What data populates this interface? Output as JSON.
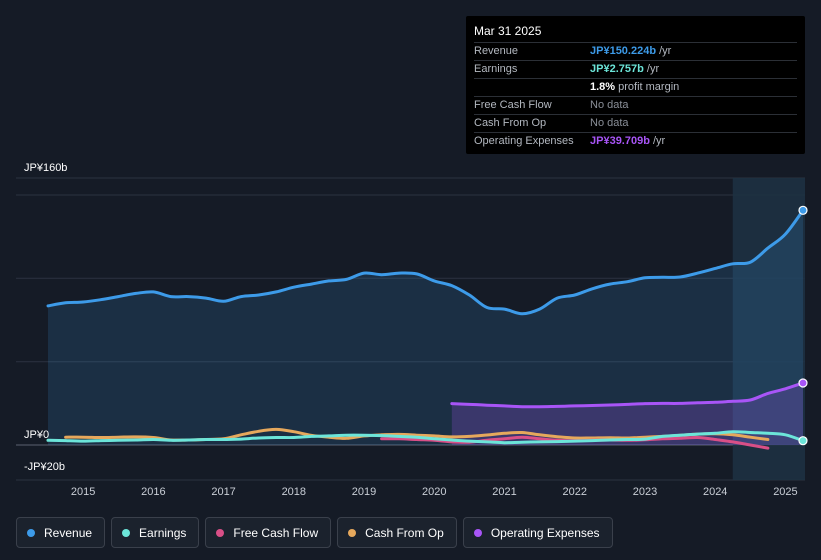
{
  "tooltip": {
    "date": "Mar 31 2025",
    "rows": [
      {
        "label": "Revenue",
        "value": "JP¥150.224b",
        "unit": " /yr",
        "color": "#3d9be9"
      },
      {
        "label": "Earnings",
        "value": "JP¥2.757b",
        "unit": " /yr",
        "color": "#6ce5d9"
      },
      {
        "label": "",
        "value": "1.8%",
        "unit": " profit margin",
        "color": "#ffffff"
      },
      {
        "label": "Free Cash Flow",
        "value": "No data",
        "unit": "",
        "color": ""
      },
      {
        "label": "Cash From Op",
        "value": "No data",
        "unit": "",
        "color": ""
      },
      {
        "label": "Operating Expenses",
        "value": "JP¥39.709b",
        "unit": " /yr",
        "color": "#a855f7"
      }
    ]
  },
  "legend": [
    {
      "label": "Revenue",
      "color": "#3d9be9"
    },
    {
      "label": "Earnings",
      "color": "#6ce5d9"
    },
    {
      "label": "Free Cash Flow",
      "color": "#d94f87"
    },
    {
      "label": "Cash From Op",
      "color": "#e6a85c"
    },
    {
      "label": "Operating Expenses",
      "color": "#a855f7"
    }
  ],
  "chart_data": {
    "type": "line",
    "title": "",
    "units": "JP¥ billions",
    "y_labels": [
      "JP¥160b",
      "JP¥0",
      "-JP¥20b"
    ],
    "ylim": [
      -20,
      160
    ],
    "xlim": [
      2014.5,
      2025.25
    ],
    "x_ticks": [
      2015,
      2016,
      2017,
      2018,
      2019,
      2020,
      2021,
      2022,
      2023,
      2024,
      2025
    ],
    "x_tick_labels": [
      "2015",
      "2016",
      "2017",
      "2018",
      "2019",
      "2020",
      "2021",
      "2022",
      "2023",
      "2024",
      "2025"
    ],
    "forecast_start": 2024.25,
    "series": [
      {
        "name": "Revenue",
        "color": "#3d9be9",
        "area": true,
        "end_marker": true,
        "x": [
          2014.5,
          2014.75,
          2015.0,
          2015.25,
          2015.5,
          2015.75,
          2016.0,
          2016.25,
          2016.5,
          2016.75,
          2017.0,
          2017.25,
          2017.5,
          2017.75,
          2018.0,
          2018.25,
          2018.5,
          2018.75,
          2019.0,
          2019.25,
          2019.5,
          2019.75,
          2020.0,
          2020.25,
          2020.5,
          2020.75,
          2021.0,
          2021.25,
          2021.5,
          2021.75,
          2022.0,
          2022.25,
          2022.5,
          2022.75,
          2023.0,
          2023.25,
          2023.5,
          2023.75,
          2024.0,
          2024.25,
          2024.5,
          2024.75,
          2025.0,
          2025.25
        ],
        "values": [
          89,
          91,
          91.5,
          93,
          95,
          97,
          98,
          95,
          95,
          94,
          92,
          95,
          96,
          98,
          101,
          103,
          105,
          106,
          110,
          109,
          110,
          109.5,
          105,
          102,
          96,
          88,
          87,
          84,
          87,
          94,
          96,
          100,
          103,
          104.5,
          107,
          107.3,
          107.5,
          110,
          113,
          116,
          117,
          126,
          135,
          150.2
        ]
      },
      {
        "name": "Operating Expenses",
        "color": "#a855f7",
        "area": true,
        "end_marker": true,
        "x": [
          2020.25,
          2020.5,
          2020.75,
          2021.0,
          2021.25,
          2021.5,
          2021.75,
          2022.0,
          2022.25,
          2022.5,
          2022.75,
          2023.0,
          2023.25,
          2023.5,
          2023.75,
          2024.0,
          2024.25,
          2024.5,
          2024.75,
          2025.0,
          2025.25
        ],
        "values": [
          26.5,
          26,
          25.5,
          25,
          24.5,
          24.5,
          24.7,
          25,
          25.3,
          25.6,
          26,
          26.5,
          26.6,
          26.6,
          27,
          27.3,
          28,
          28.8,
          33,
          36,
          39.7
        ]
      },
      {
        "name": "Cash From Op",
        "color": "#e6a85c",
        "area": false,
        "end_marker": false,
        "x": [
          2014.75,
          2015.0,
          2015.25,
          2015.5,
          2015.75,
          2016.0,
          2016.25,
          2016.5,
          2016.75,
          2017.0,
          2017.25,
          2017.5,
          2017.75,
          2018.0,
          2018.25,
          2018.5,
          2018.75,
          2019.0,
          2019.25,
          2019.5,
          2019.75,
          2020.0,
          2020.25,
          2020.5,
          2020.75,
          2021.0,
          2021.25,
          2021.5,
          2021.75,
          2022.0,
          2022.25,
          2022.5,
          2022.75,
          2023.0,
          2023.25,
          2023.5,
          2023.75,
          2024.0,
          2024.25,
          2024.5,
          2024.75
        ],
        "values": [
          5,
          5,
          4.8,
          5,
          5.2,
          4.8,
          3.2,
          3.2,
          3.5,
          4,
          6.5,
          8.8,
          10,
          8.5,
          6.2,
          5,
          4.3,
          5.8,
          6.5,
          6.8,
          6.3,
          5.8,
          5.2,
          5.5,
          6.4,
          7.5,
          8,
          6.5,
          5.3,
          4.5,
          4.5,
          4.7,
          4.5,
          5,
          5.5,
          6.2,
          7,
          7.2,
          6.5,
          5,
          3.5
        ]
      },
      {
        "name": "Free Cash Flow",
        "color": "#d94f87",
        "area": false,
        "end_marker": false,
        "x": [
          2019.25,
          2019.5,
          2019.75,
          2020.0,
          2020.25,
          2020.5,
          2020.75,
          2021.0,
          2021.25,
          2021.5,
          2021.75,
          2022.0,
          2022.25,
          2022.5,
          2022.75,
          2023.0,
          2023.25,
          2023.5,
          2023.75,
          2024.0,
          2024.25,
          2024.5,
          2024.75
        ],
        "values": [
          4,
          4,
          3.5,
          3,
          2,
          1.8,
          3,
          4,
          5,
          4,
          3,
          2.7,
          3,
          3.2,
          3,
          3.3,
          4,
          4.3,
          4.8,
          3.5,
          2,
          0,
          -2
        ]
      },
      {
        "name": "Earnings",
        "color": "#6ce5d9",
        "area": false,
        "end_marker": true,
        "x": [
          2014.5,
          2014.75,
          2015.0,
          2015.25,
          2015.5,
          2015.75,
          2016.0,
          2016.25,
          2016.5,
          2016.75,
          2017.0,
          2017.25,
          2017.5,
          2017.75,
          2018.0,
          2018.25,
          2018.5,
          2018.75,
          2019.0,
          2019.25,
          2019.5,
          2019.75,
          2020.0,
          2020.25,
          2020.5,
          2020.75,
          2021.0,
          2021.25,
          2021.5,
          2021.75,
          2022.0,
          2022.25,
          2022.5,
          2022.75,
          2023.0,
          2023.25,
          2023.5,
          2023.75,
          2024.0,
          2024.25,
          2024.5,
          2024.75,
          2025.0,
          2025.25
        ],
        "values": [
          3,
          2.8,
          2.5,
          2.8,
          3,
          3.2,
          3.5,
          3,
          3.2,
          3.5,
          3.5,
          3.8,
          4.5,
          4.8,
          4.8,
          5.5,
          5.8,
          6.3,
          6.3,
          6,
          5.5,
          5,
          4,
          3.2,
          2.5,
          2,
          1.5,
          1.8,
          2,
          2.2,
          2.5,
          2.8,
          3.2,
          3.5,
          3.8,
          5.5,
          6.3,
          7,
          7.5,
          8.5,
          8,
          7.5,
          6.5,
          2.76
        ]
      }
    ]
  }
}
